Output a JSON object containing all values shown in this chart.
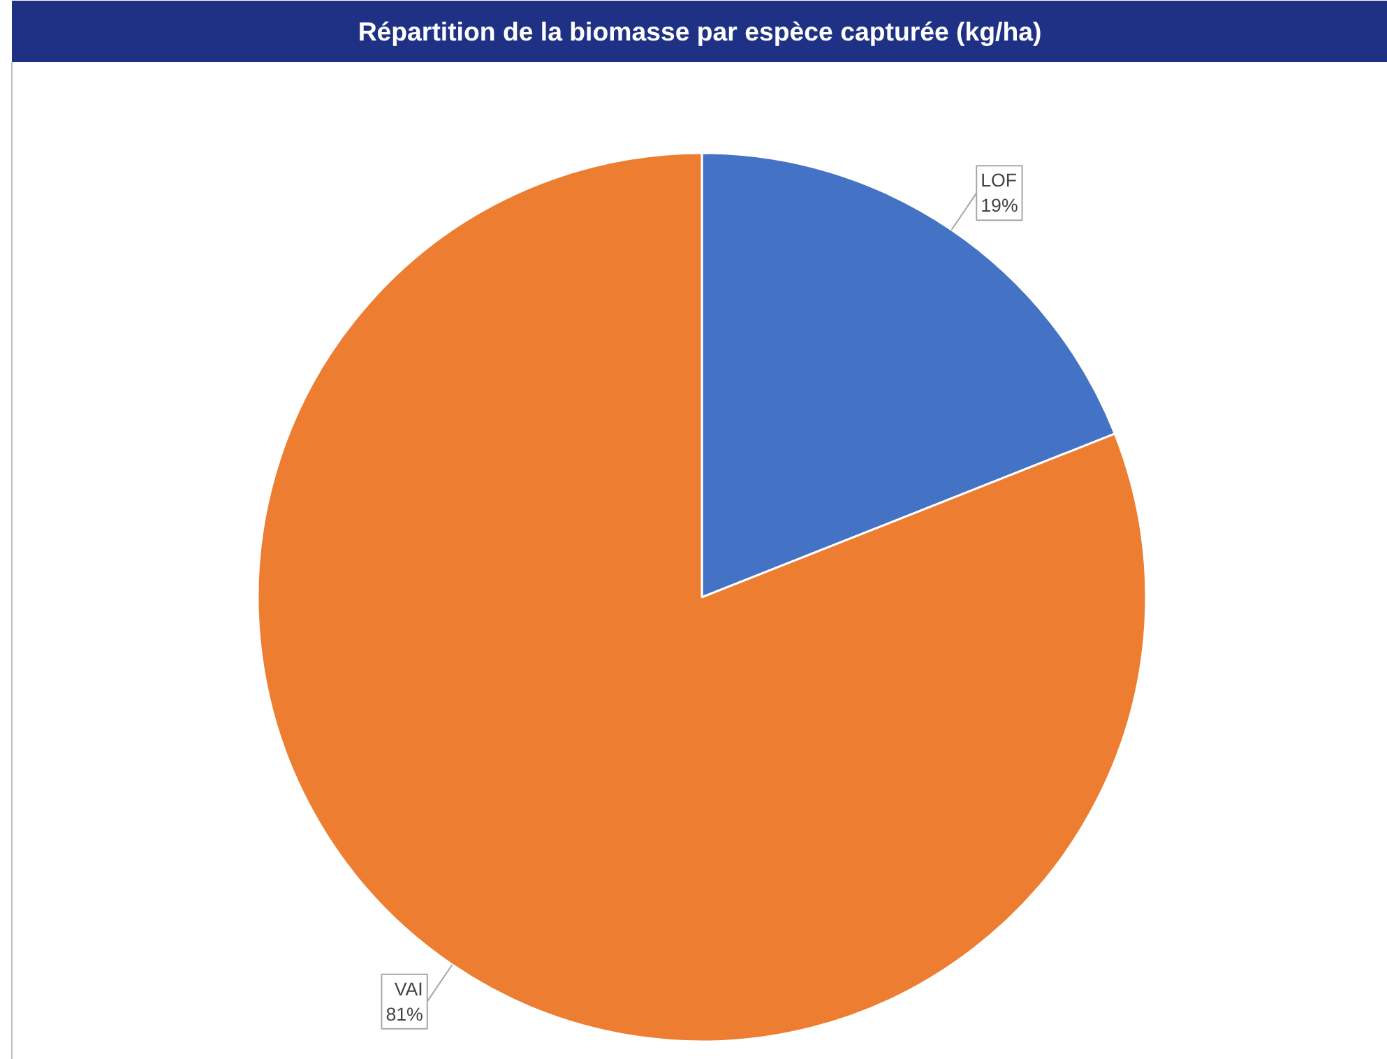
{
  "chart_data": {
    "type": "pie",
    "title": "Répartition de la biomasse par espèce capturée (kg/ha)",
    "categories": [
      "LOF",
      "VAI"
    ],
    "values": [
      19,
      81
    ],
    "colors": [
      "#4472c4",
      "#ed7d31"
    ],
    "value_labels": [
      "19%",
      "81%"
    ]
  }
}
